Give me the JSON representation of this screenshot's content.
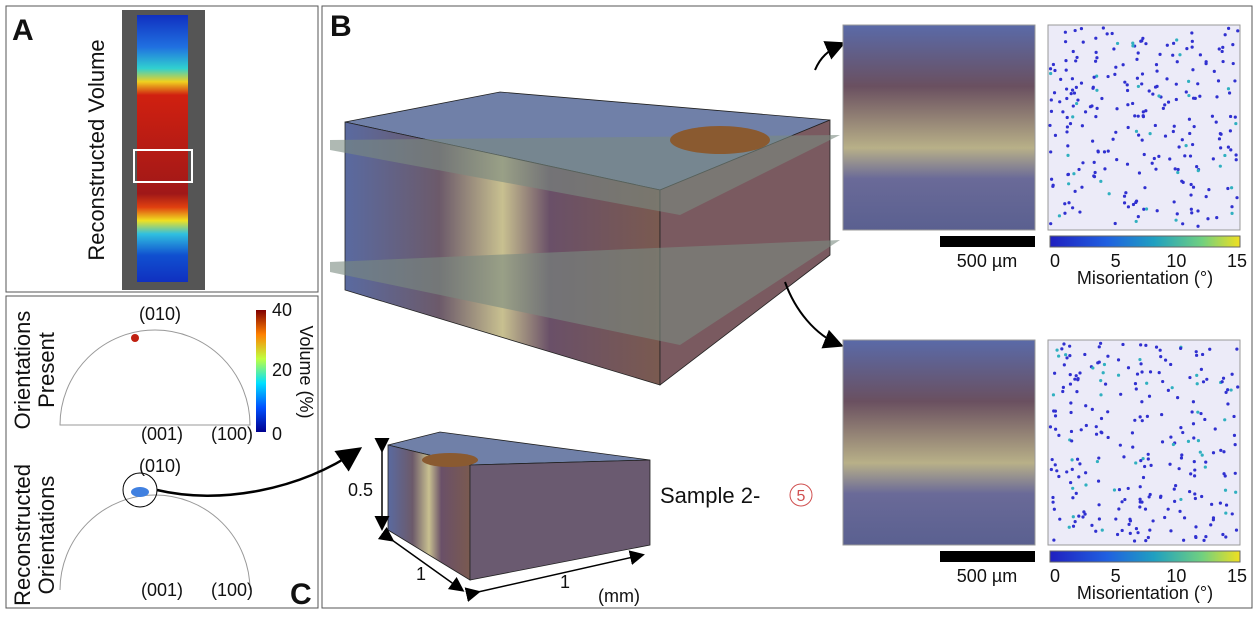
{
  "panel_a": {
    "label": "A",
    "title": "Reconstructed Volume"
  },
  "panel_c": {
    "label": "C",
    "present": {
      "title_lines": [
        "Orientations",
        "Present"
      ],
      "top": "(010)",
      "left": "(001)",
      "right": "(100)"
    },
    "reconstructed": {
      "title_lines": [
        "Reconstructed",
        "Orientations"
      ],
      "top": "(010)",
      "left": "(001)",
      "right": "(100)"
    },
    "colorbar": {
      "ticks": [
        40,
        20,
        0
      ],
      "title": "Volume (%)"
    }
  },
  "panel_b": {
    "label": "B",
    "axes": {
      "height": 0.5,
      "depth": 1,
      "width": 1,
      "unit": "(mm)"
    },
    "sample": {
      "prefix": "Sample 2-",
      "number": "5"
    },
    "slices": [
      {
        "scale_bar": "500 µm",
        "colorbar_ticks": [
          0,
          5,
          10,
          15
        ],
        "colorbar_title": "Misorientation (°)"
      },
      {
        "scale_bar": "500 µm",
        "colorbar_ticks": [
          0,
          5,
          10,
          15
        ],
        "colorbar_title": "Misorientation (°)"
      }
    ]
  }
}
